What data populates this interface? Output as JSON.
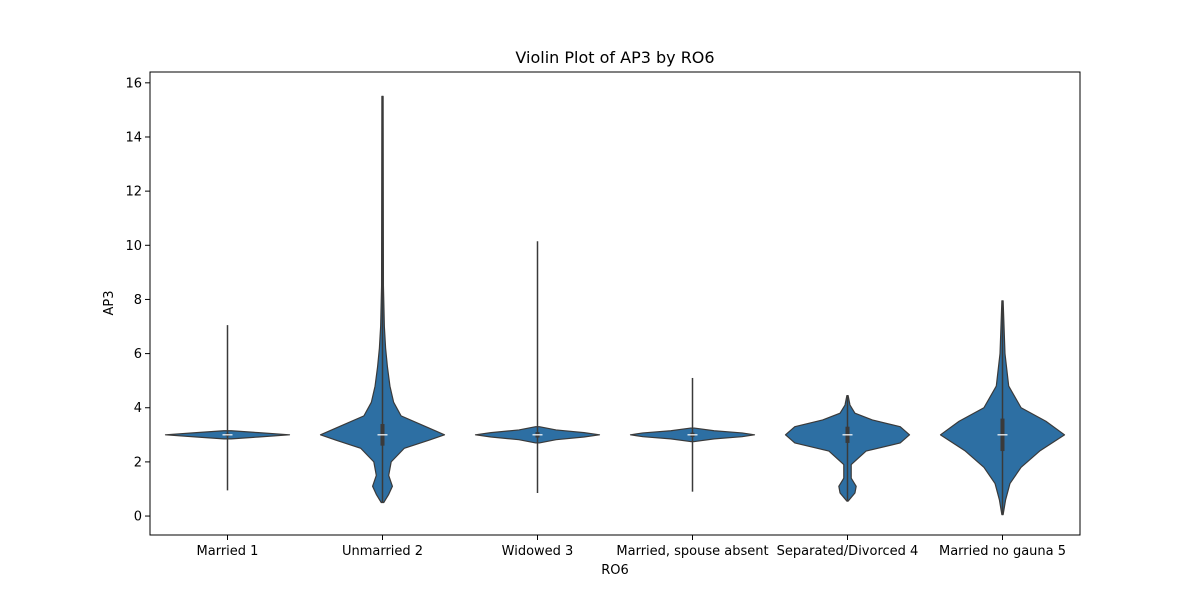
{
  "chart_data": {
    "type": "violin",
    "title": "Violin Plot of AP3 by RO6",
    "xlabel": "RO6",
    "ylabel": "AP3",
    "ylim": [
      -0.7,
      16.4
    ],
    "yticks": [
      0,
      2,
      4,
      6,
      8,
      10,
      12,
      14,
      16
    ],
    "categories": [
      "Married 1",
      "Unmarried 2",
      "Widowed 3",
      "Married, spouse absent",
      "Separated/Divorced 4",
      "Married no gauna 5"
    ],
    "violin_color": "#2d6fa3",
    "outline_color": "#3a3a3a",
    "series": [
      {
        "category": "Married 1",
        "min": 0.95,
        "max": 7.05,
        "median": 3.0,
        "q1": 2.95,
        "q3": 3.05,
        "profile": [
          [
            2.85,
            0.06
          ],
          [
            2.92,
            0.5
          ],
          [
            3.0,
            1.0
          ],
          [
            3.08,
            0.5
          ],
          [
            3.15,
            0.06
          ]
        ]
      },
      {
        "category": "Unmarried 2",
        "min": 0.5,
        "max": 15.5,
        "median": 3.0,
        "q1": 2.6,
        "q3": 3.4,
        "profile": [
          [
            0.5,
            0.02
          ],
          [
            0.8,
            0.1
          ],
          [
            1.1,
            0.16
          ],
          [
            1.5,
            0.1
          ],
          [
            2.0,
            0.14
          ],
          [
            2.5,
            0.35
          ],
          [
            2.8,
            0.75
          ],
          [
            3.0,
            1.0
          ],
          [
            3.3,
            0.7
          ],
          [
            3.7,
            0.3
          ],
          [
            4.2,
            0.18
          ],
          [
            4.8,
            0.12
          ],
          [
            5.5,
            0.08
          ],
          [
            6.2,
            0.05
          ],
          [
            7.0,
            0.03
          ],
          [
            8.5,
            0.015
          ],
          [
            15.5,
            0.01
          ]
        ]
      },
      {
        "category": "Widowed 3",
        "min": 0.85,
        "max": 10.15,
        "median": 3.0,
        "q1": 2.9,
        "q3": 3.1,
        "profile": [
          [
            2.7,
            0.03
          ],
          [
            2.82,
            0.3
          ],
          [
            2.92,
            0.75
          ],
          [
            3.0,
            1.0
          ],
          [
            3.08,
            0.75
          ],
          [
            3.18,
            0.3
          ],
          [
            3.3,
            0.03
          ]
        ]
      },
      {
        "category": "Married, spouse absent",
        "min": 0.9,
        "max": 5.1,
        "median": 3.0,
        "q1": 2.92,
        "q3": 3.08,
        "profile": [
          [
            2.75,
            0.03
          ],
          [
            2.85,
            0.35
          ],
          [
            2.93,
            0.8
          ],
          [
            3.0,
            1.0
          ],
          [
            3.07,
            0.8
          ],
          [
            3.15,
            0.35
          ],
          [
            3.25,
            0.03
          ]
        ]
      },
      {
        "category": "Separated/Divorced 4",
        "min": 0.55,
        "max": 4.45,
        "median": 3.0,
        "q1": 2.7,
        "q3": 3.3,
        "profile": [
          [
            0.55,
            0.01
          ],
          [
            0.85,
            0.12
          ],
          [
            1.1,
            0.14
          ],
          [
            1.4,
            0.06
          ],
          [
            1.9,
            0.06
          ],
          [
            2.4,
            0.3
          ],
          [
            2.7,
            0.85
          ],
          [
            3.0,
            1.0
          ],
          [
            3.3,
            0.85
          ],
          [
            3.55,
            0.4
          ],
          [
            3.8,
            0.12
          ],
          [
            4.1,
            0.04
          ],
          [
            4.45,
            0.01
          ]
        ]
      },
      {
        "category": "Married no gauna 5",
        "min": 0.05,
        "max": 7.95,
        "median": 3.0,
        "q1": 2.4,
        "q3": 3.6,
        "profile": [
          [
            0.05,
            0.01
          ],
          [
            0.6,
            0.05
          ],
          [
            1.2,
            0.12
          ],
          [
            1.8,
            0.3
          ],
          [
            2.4,
            0.6
          ],
          [
            3.0,
            1.0
          ],
          [
            3.5,
            0.7
          ],
          [
            4.0,
            0.3
          ],
          [
            4.8,
            0.1
          ],
          [
            6.0,
            0.04
          ],
          [
            7.95,
            0.01
          ]
        ]
      }
    ]
  }
}
